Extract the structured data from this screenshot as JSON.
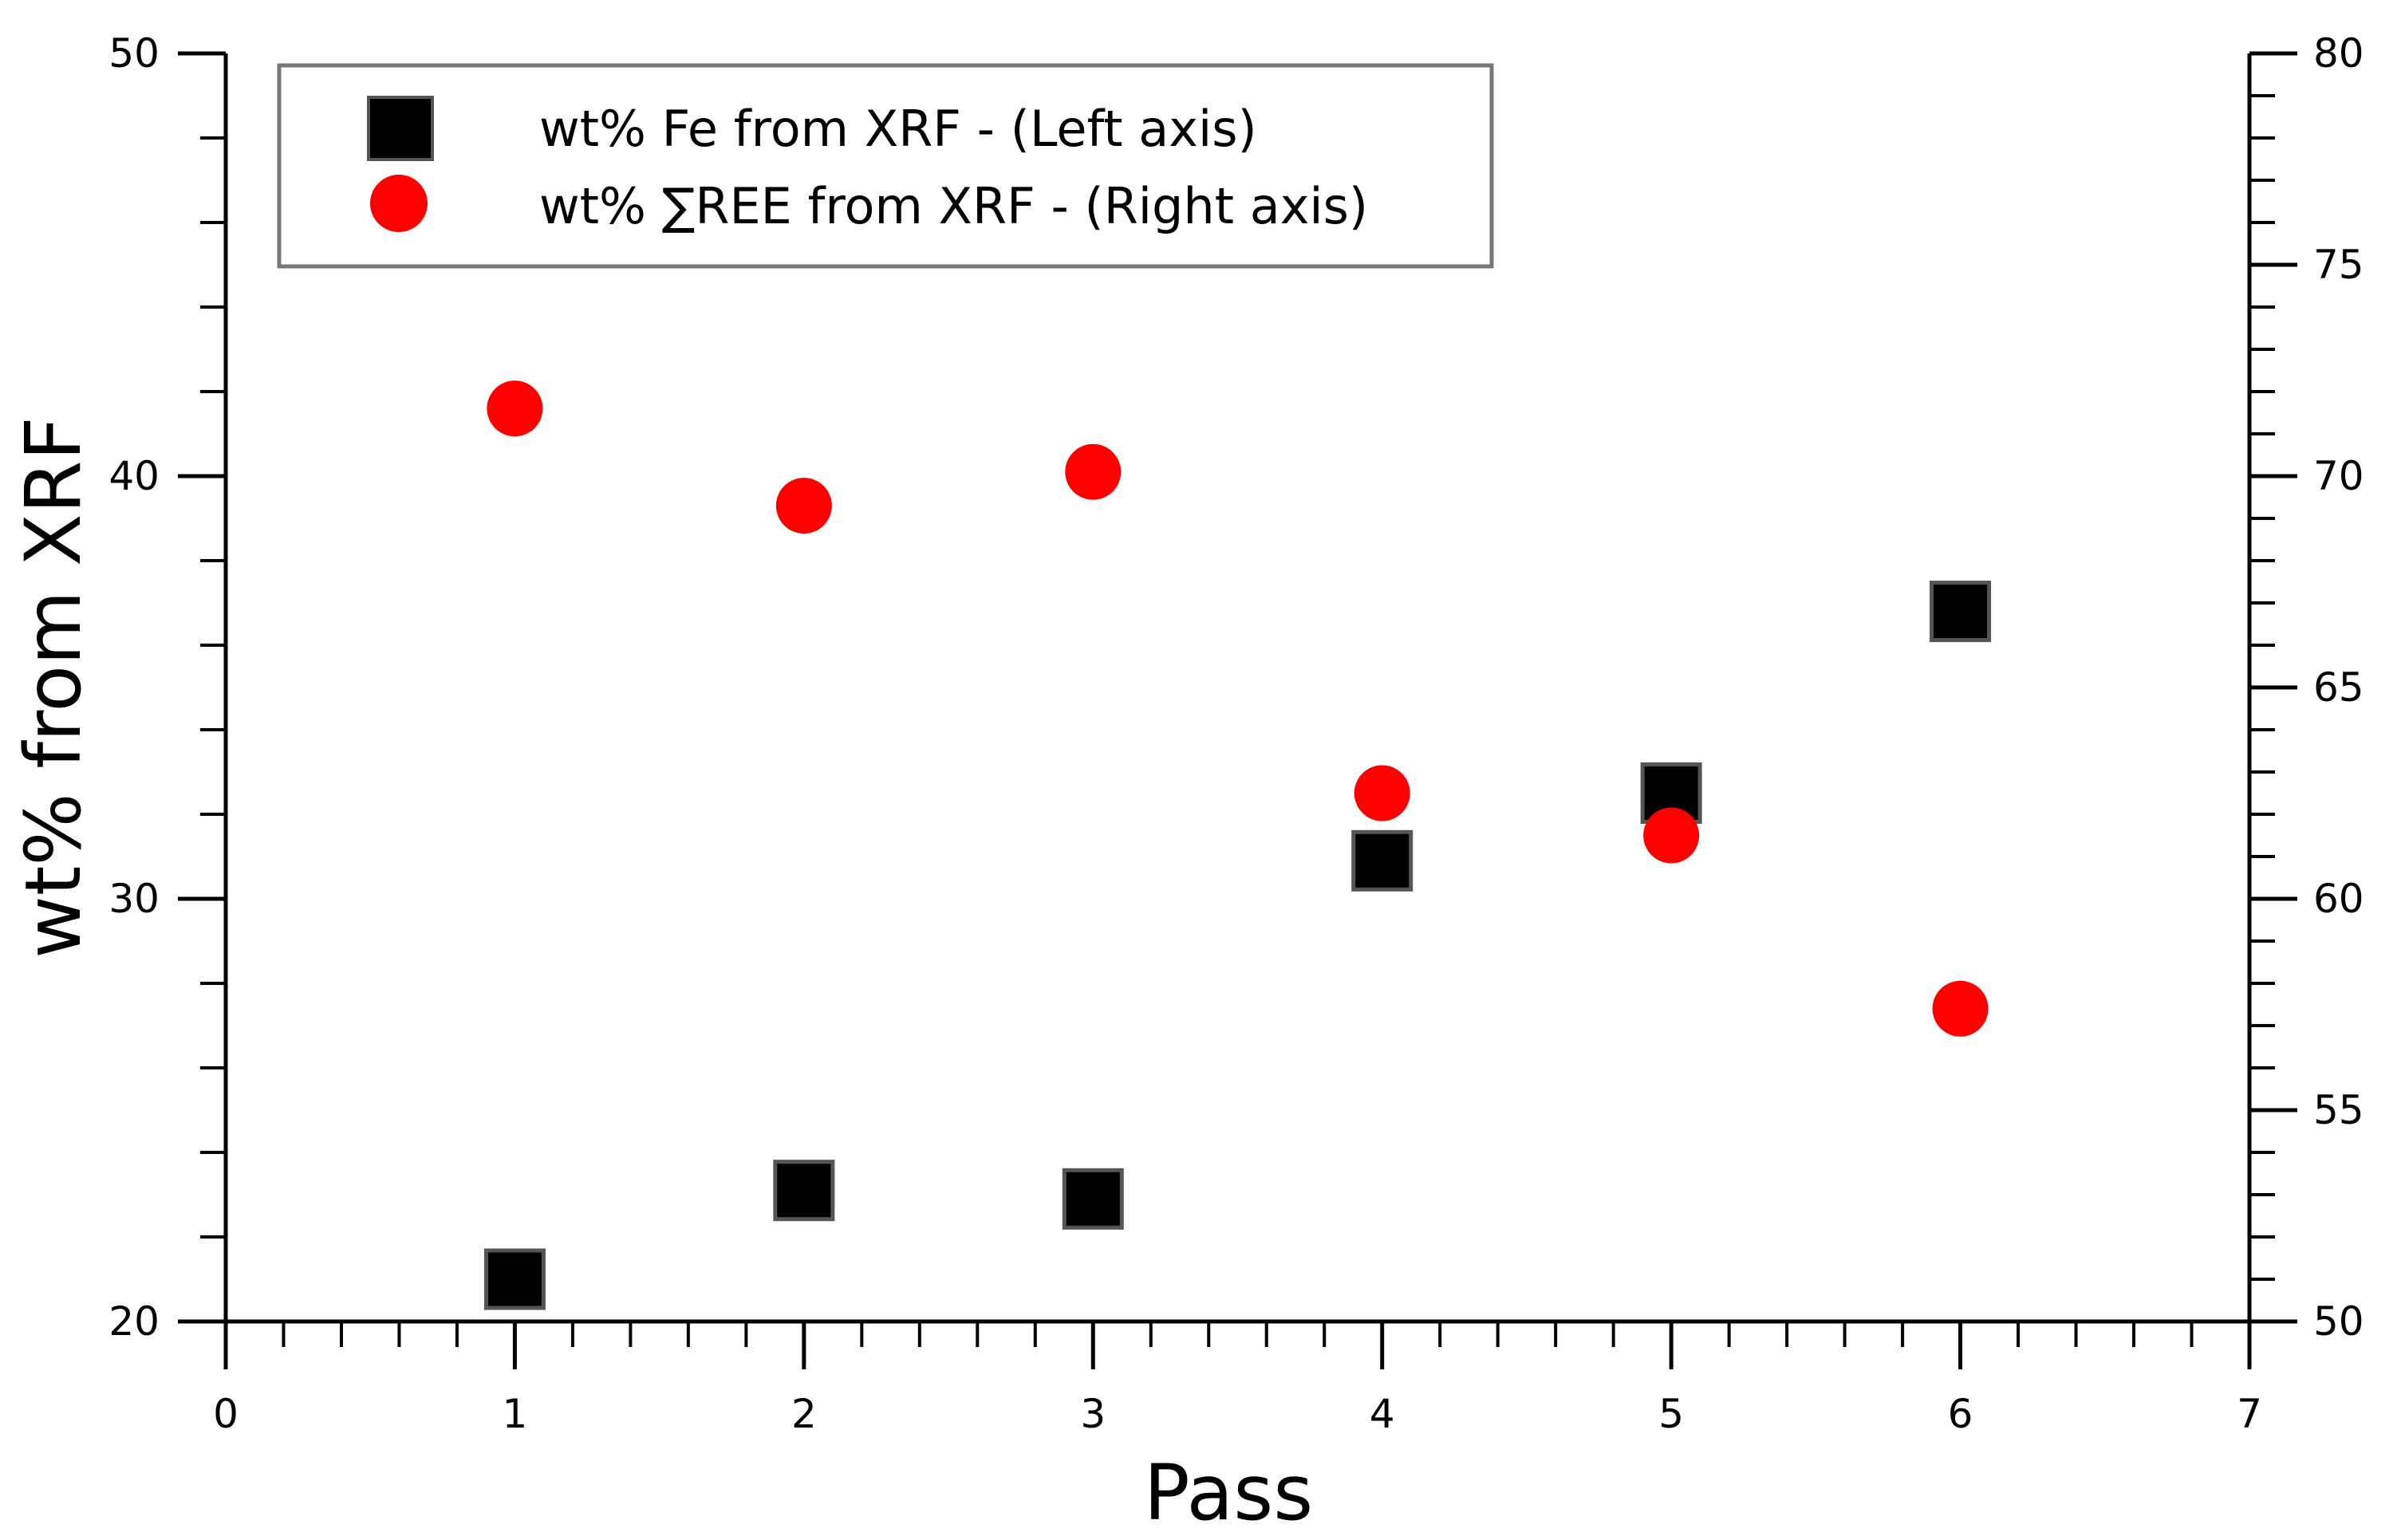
{
  "chart_data": {
    "type": "scatter",
    "title": "",
    "xlabel": "Pass",
    "ylabel": "wt% from XRF",
    "y2label": "",
    "xlim": [
      0,
      7
    ],
    "ylim": [
      20,
      50
    ],
    "y2lim": [
      50,
      80
    ],
    "xticks": [
      "0",
      "1",
      "2",
      "3",
      "4",
      "5",
      "6",
      "7"
    ],
    "yticks": [
      "20",
      "30",
      "40",
      "50"
    ],
    "y2ticks": [
      "50",
      "55",
      "60",
      "65",
      "70",
      "75",
      "80"
    ],
    "grid": false,
    "legend_position": "top-left",
    "series": [
      {
        "name": "wt% Fe from XRF - (Left axis)",
        "axis": "left",
        "marker": "square",
        "color": "#000000",
        "x": [
          1,
          2,
          3,
          4,
          5,
          6
        ],
        "y": [
          21.0,
          23.1,
          22.9,
          30.9,
          32.5,
          36.8
        ]
      },
      {
        "name": "wt% ∑REE from XRF - (Right axis)",
        "axis": "right",
        "marker": "circle",
        "color": "#ff0000",
        "x": [
          1,
          2,
          3,
          4,
          5,
          6
        ],
        "y": [
          71.6,
          69.3,
          70.1,
          62.5,
          61.5,
          57.4
        ]
      }
    ]
  }
}
